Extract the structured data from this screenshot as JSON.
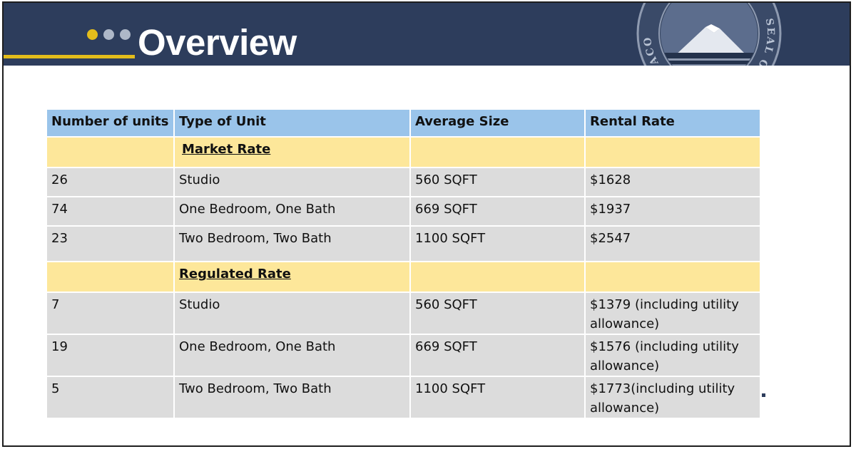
{
  "header": {
    "title": "Overview",
    "seal_text": "SEAL OF THE CITY OF TACOMA",
    "colors": {
      "band": "#2d3d5c",
      "accent": "#e3bd1b",
      "dot": "#aeb8c8"
    }
  },
  "table": {
    "columns": [
      "Number of units",
      "Type of Unit",
      "Average Size",
      "Rental Rate"
    ],
    "sections": [
      {
        "label": "Market Rate",
        "rows": [
          {
            "units": "26",
            "type": "Studio",
            "size": "560 SQFT",
            "rate": "$1628"
          },
          {
            "units": "74",
            "type": "One Bedroom, One Bath",
            "size": "669 SQFT",
            "rate": "$1937"
          },
          {
            "units": "23",
            "type": "Two Bedroom, Two Bath",
            "size": "1100 SQFT",
            "rate": "$2547"
          }
        ]
      },
      {
        "label": "Regulated Rate",
        "rows": [
          {
            "units": "7",
            "type": "Studio",
            "size": "560 SQFT",
            "rate": "$1379 (including utility allowance)"
          },
          {
            "units": "19",
            "type": "One Bedroom, One Bath",
            "size": "669 SQFT",
            "rate": "$1576 (including utility allowance)"
          },
          {
            "units": "5",
            "type": "Two Bedroom, Two Bath",
            "size": "1100 SQFT",
            "rate": "$1773(including utility allowance)"
          }
        ]
      }
    ],
    "colors": {
      "header": "#9ac4ea",
      "section": "#fde79a",
      "row": "#dcdcdc"
    }
  }
}
